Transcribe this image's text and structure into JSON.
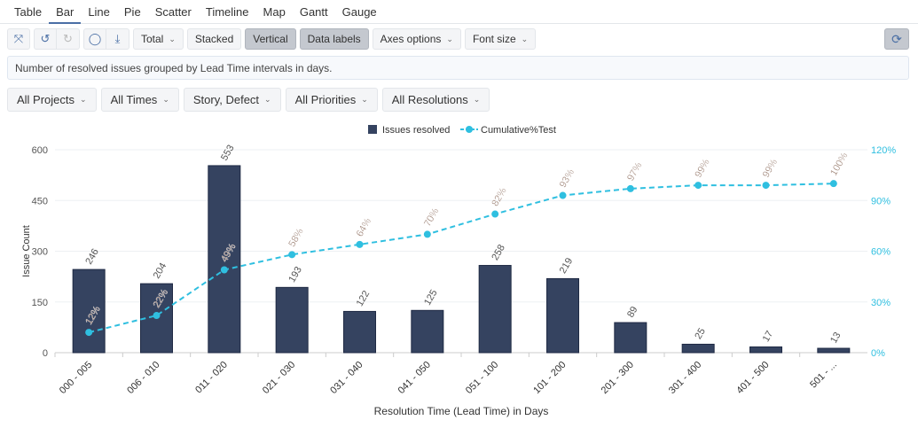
{
  "tabs": [
    "Table",
    "Bar",
    "Line",
    "Pie",
    "Scatter",
    "Timeline",
    "Map",
    "Gantt",
    "Gauge"
  ],
  "active_tab": "Bar",
  "toolbar": {
    "total": "Total",
    "stacked": "Stacked",
    "vertical": "Vertical",
    "data_labels": "Data labels",
    "axes_options": "Axes options",
    "font_size": "Font size"
  },
  "description": "Number of resolved issues grouped by Lead Time intervals in days.",
  "filters": [
    "All Projects",
    "All Times",
    "Story, Defect",
    "All Priorities",
    "All Resolutions"
  ],
  "chart_data": {
    "type": "bar",
    "categories": [
      "000 - 005",
      "006 - 010",
      "011 - 020",
      "021 - 030",
      "031 - 040",
      "041 - 050",
      "051 - 100",
      "101 - 200",
      "201 - 300",
      "301 - 400",
      "401 - 500",
      "501 - ..."
    ],
    "series": [
      {
        "name": "Issues resolved",
        "type": "bar",
        "color": "#354360",
        "values": [
          246,
          204,
          553,
          193,
          122,
          125,
          258,
          219,
          89,
          25,
          17,
          13
        ]
      },
      {
        "name": "Cumulative%Test",
        "type": "line",
        "color": "#2fbfe0",
        "values": [
          12,
          22,
          49,
          58,
          64,
          70,
          82,
          93,
          97,
          99,
          99,
          100
        ]
      }
    ],
    "xlabel": "Resolution Time (Lead Time) in Days",
    "ylabel": "Issue Count",
    "ylim": [
      0,
      600
    ],
    "yticks": [
      0,
      150,
      300,
      450,
      600
    ],
    "y2lim": [
      0,
      120
    ],
    "y2ticks": [
      "0%",
      "30%",
      "60%",
      "90%",
      "120%"
    ],
    "legend": "top-center",
    "grid": true
  }
}
